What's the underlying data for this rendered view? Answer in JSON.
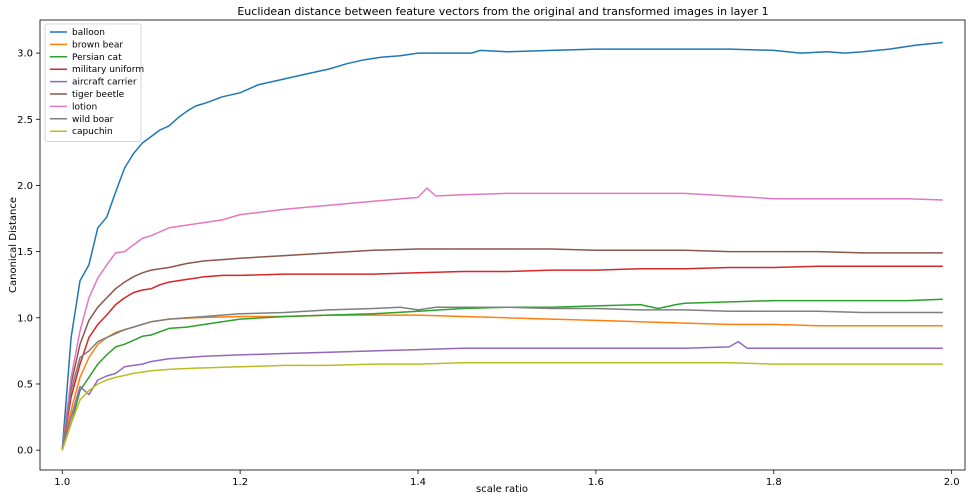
{
  "chart_data": {
    "type": "line",
    "title": "Euclidean distance between feature vectors from the original and transformed images in layer 1",
    "xlabel": "scale ratio",
    "ylabel": "Canonical Distance",
    "xlim": [
      0.975,
      2.015
    ],
    "ylim": [
      -0.15,
      3.25
    ],
    "xticks": [
      1.0,
      1.2,
      1.4,
      1.6,
      1.8,
      2.0
    ],
    "xtick_labels": [
      "1.0",
      "1.2",
      "1.4",
      "1.6",
      "1.8",
      "2.0"
    ],
    "yticks": [
      0.0,
      0.5,
      1.0,
      1.5,
      2.0,
      2.5,
      3.0
    ],
    "ytick_labels": [
      "0.0",
      "0.5",
      "1.0",
      "1.5",
      "2.0",
      "2.5",
      "3.0"
    ],
    "grid": false,
    "legend_position": "top-left",
    "series": [
      {
        "name": "balloon",
        "color": "#1f77b4",
        "x": [
          1.0,
          1.01,
          1.02,
          1.03,
          1.04,
          1.05,
          1.06,
          1.07,
          1.08,
          1.09,
          1.1,
          1.11,
          1.12,
          1.13,
          1.14,
          1.15,
          1.16,
          1.18,
          1.2,
          1.22,
          1.24,
          1.26,
          1.28,
          1.3,
          1.32,
          1.34,
          1.36,
          1.38,
          1.4,
          1.42,
          1.44,
          1.46,
          1.47,
          1.5,
          1.55,
          1.6,
          1.65,
          1.7,
          1.75,
          1.8,
          1.83,
          1.86,
          1.88,
          1.9,
          1.93,
          1.96,
          1.99
        ],
        "y": [
          0.0,
          0.85,
          1.28,
          1.4,
          1.68,
          1.76,
          1.95,
          2.13,
          2.24,
          2.32,
          2.37,
          2.42,
          2.45,
          2.51,
          2.56,
          2.6,
          2.62,
          2.67,
          2.7,
          2.76,
          2.79,
          2.82,
          2.85,
          2.88,
          2.92,
          2.95,
          2.97,
          2.98,
          3.0,
          3.0,
          3.0,
          3.0,
          3.02,
          3.01,
          3.02,
          3.03,
          3.03,
          3.03,
          3.03,
          3.02,
          3.0,
          3.01,
          3.0,
          3.01,
          3.03,
          3.06,
          3.08
        ]
      },
      {
        "name": "brown bear",
        "color": "#ff7f0e",
        "x": [
          1.0,
          1.01,
          1.02,
          1.03,
          1.04,
          1.05,
          1.06,
          1.08,
          1.1,
          1.12,
          1.15,
          1.2,
          1.25,
          1.3,
          1.35,
          1.4,
          1.45,
          1.5,
          1.55,
          1.6,
          1.65,
          1.7,
          1.75,
          1.8,
          1.85,
          1.9,
          1.95,
          1.99
        ],
        "y": [
          0.0,
          0.3,
          0.55,
          0.7,
          0.8,
          0.85,
          0.89,
          0.93,
          0.97,
          0.99,
          1.0,
          1.01,
          1.01,
          1.02,
          1.02,
          1.02,
          1.01,
          1.0,
          0.99,
          0.98,
          0.97,
          0.96,
          0.95,
          0.95,
          0.94,
          0.94,
          0.94,
          0.94
        ]
      },
      {
        "name": "Persian cat",
        "color": "#2ca02c",
        "x": [
          1.0,
          1.01,
          1.02,
          1.03,
          1.04,
          1.05,
          1.06,
          1.07,
          1.08,
          1.09,
          1.1,
          1.12,
          1.14,
          1.16,
          1.18,
          1.2,
          1.25,
          1.3,
          1.35,
          1.4,
          1.45,
          1.5,
          1.55,
          1.6,
          1.65,
          1.67,
          1.69,
          1.7,
          1.75,
          1.8,
          1.85,
          1.9,
          1.95,
          1.99
        ],
        "y": [
          0.0,
          0.2,
          0.45,
          0.55,
          0.65,
          0.72,
          0.78,
          0.8,
          0.83,
          0.86,
          0.87,
          0.92,
          0.93,
          0.95,
          0.97,
          0.99,
          1.01,
          1.02,
          1.03,
          1.05,
          1.07,
          1.08,
          1.08,
          1.09,
          1.1,
          1.07,
          1.1,
          1.11,
          1.12,
          1.13,
          1.13,
          1.13,
          1.13,
          1.14
        ]
      },
      {
        "name": "military uniform",
        "color": "#d62728",
        "x": [
          1.0,
          1.01,
          1.02,
          1.03,
          1.04,
          1.05,
          1.06,
          1.07,
          1.08,
          1.09,
          1.1,
          1.11,
          1.12,
          1.13,
          1.14,
          1.15,
          1.16,
          1.18,
          1.2,
          1.25,
          1.3,
          1.35,
          1.4,
          1.45,
          1.5,
          1.55,
          1.6,
          1.65,
          1.7,
          1.75,
          1.8,
          1.85,
          1.9,
          1.95,
          1.99
        ],
        "y": [
          0.0,
          0.4,
          0.65,
          0.85,
          0.95,
          1.02,
          1.1,
          1.15,
          1.19,
          1.21,
          1.22,
          1.25,
          1.27,
          1.28,
          1.29,
          1.3,
          1.31,
          1.32,
          1.32,
          1.33,
          1.33,
          1.33,
          1.34,
          1.35,
          1.35,
          1.36,
          1.36,
          1.37,
          1.37,
          1.38,
          1.38,
          1.39,
          1.39,
          1.39,
          1.39
        ]
      },
      {
        "name": "aircraft carrier",
        "color": "#9467bd",
        "x": [
          1.0,
          1.01,
          1.02,
          1.03,
          1.04,
          1.05,
          1.06,
          1.07,
          1.08,
          1.09,
          1.1,
          1.12,
          1.14,
          1.16,
          1.2,
          1.25,
          1.3,
          1.35,
          1.4,
          1.45,
          1.5,
          1.55,
          1.6,
          1.65,
          1.7,
          1.75,
          1.76,
          1.77,
          1.8,
          1.85,
          1.9,
          1.95,
          1.99
        ],
        "y": [
          0.0,
          0.25,
          0.48,
          0.42,
          0.53,
          0.56,
          0.58,
          0.63,
          0.64,
          0.65,
          0.67,
          0.69,
          0.7,
          0.71,
          0.72,
          0.73,
          0.74,
          0.75,
          0.76,
          0.77,
          0.77,
          0.77,
          0.77,
          0.77,
          0.77,
          0.78,
          0.82,
          0.77,
          0.77,
          0.77,
          0.77,
          0.77,
          0.77
        ]
      },
      {
        "name": "tiger beetle",
        "color": "#8c564b",
        "x": [
          1.0,
          1.01,
          1.02,
          1.03,
          1.04,
          1.05,
          1.06,
          1.07,
          1.08,
          1.09,
          1.1,
          1.11,
          1.12,
          1.14,
          1.16,
          1.18,
          1.2,
          1.25,
          1.3,
          1.35,
          1.4,
          1.45,
          1.5,
          1.55,
          1.6,
          1.65,
          1.7,
          1.75,
          1.8,
          1.85,
          1.9,
          1.95,
          1.99
        ],
        "y": [
          0.0,
          0.5,
          0.8,
          0.98,
          1.08,
          1.15,
          1.22,
          1.27,
          1.31,
          1.34,
          1.36,
          1.37,
          1.38,
          1.41,
          1.43,
          1.44,
          1.45,
          1.47,
          1.49,
          1.51,
          1.52,
          1.52,
          1.52,
          1.52,
          1.51,
          1.51,
          1.51,
          1.5,
          1.5,
          1.5,
          1.49,
          1.49,
          1.49
        ]
      },
      {
        "name": "lotion",
        "color": "#e377c2",
        "x": [
          1.0,
          1.01,
          1.02,
          1.03,
          1.04,
          1.05,
          1.06,
          1.07,
          1.08,
          1.09,
          1.1,
          1.12,
          1.14,
          1.16,
          1.18,
          1.2,
          1.25,
          1.3,
          1.35,
          1.4,
          1.41,
          1.42,
          1.45,
          1.5,
          1.55,
          1.6,
          1.65,
          1.7,
          1.75,
          1.8,
          1.85,
          1.9,
          1.95,
          1.99
        ],
        "y": [
          0.0,
          0.55,
          0.9,
          1.15,
          1.3,
          1.4,
          1.49,
          1.5,
          1.55,
          1.6,
          1.62,
          1.68,
          1.7,
          1.72,
          1.74,
          1.78,
          1.82,
          1.85,
          1.88,
          1.91,
          1.98,
          1.92,
          1.93,
          1.94,
          1.94,
          1.94,
          1.94,
          1.94,
          1.92,
          1.9,
          1.9,
          1.9,
          1.9,
          1.89
        ]
      },
      {
        "name": "wild boar",
        "color": "#7f7f7f",
        "x": [
          1.0,
          1.01,
          1.02,
          1.03,
          1.04,
          1.05,
          1.06,
          1.07,
          1.08,
          1.09,
          1.1,
          1.12,
          1.14,
          1.16,
          1.2,
          1.25,
          1.3,
          1.35,
          1.38,
          1.4,
          1.42,
          1.45,
          1.5,
          1.55,
          1.6,
          1.65,
          1.7,
          1.75,
          1.8,
          1.85,
          1.9,
          1.95,
          1.99
        ],
        "y": [
          0.0,
          0.45,
          0.7,
          0.75,
          0.82,
          0.85,
          0.88,
          0.91,
          0.93,
          0.95,
          0.97,
          0.99,
          1.0,
          1.01,
          1.03,
          1.04,
          1.06,
          1.07,
          1.08,
          1.06,
          1.08,
          1.08,
          1.08,
          1.07,
          1.07,
          1.06,
          1.06,
          1.05,
          1.05,
          1.05,
          1.04,
          1.04,
          1.04
        ]
      },
      {
        "name": "capuchin",
        "color": "#bcbd22",
        "x": [
          1.0,
          1.01,
          1.02,
          1.03,
          1.04,
          1.05,
          1.06,
          1.08,
          1.1,
          1.12,
          1.15,
          1.2,
          1.25,
          1.3,
          1.35,
          1.4,
          1.45,
          1.5,
          1.55,
          1.6,
          1.65,
          1.7,
          1.75,
          1.8,
          1.85,
          1.9,
          1.95,
          1.99
        ],
        "y": [
          0.0,
          0.2,
          0.38,
          0.45,
          0.5,
          0.53,
          0.55,
          0.58,
          0.6,
          0.61,
          0.62,
          0.63,
          0.64,
          0.64,
          0.65,
          0.65,
          0.66,
          0.66,
          0.66,
          0.66,
          0.66,
          0.66,
          0.66,
          0.65,
          0.65,
          0.65,
          0.65,
          0.65
        ]
      }
    ]
  }
}
